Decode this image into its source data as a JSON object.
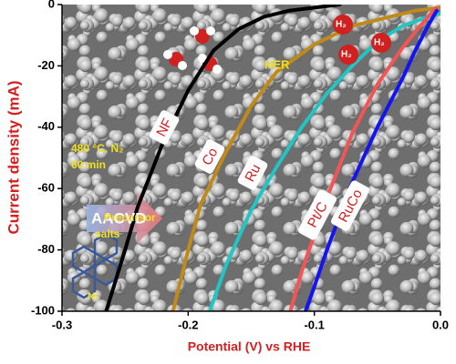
{
  "chart_data": {
    "type": "line",
    "xlabel": "Potential (V) vs RHE",
    "ylabel": "Current density (mA)",
    "xlim": [
      -0.3,
      0
    ],
    "ylim": [
      -100,
      0
    ],
    "xticks": [
      -0.3,
      -0.2,
      -0.1,
      {
        "value": 0,
        "label": "0.0"
      }
    ],
    "yticks": [
      0,
      -20,
      -40,
      -60,
      -80,
      -100
    ],
    "series": [
      {
        "name": "NF",
        "color": "#000000",
        "x": [
          -0.265,
          -0.25,
          -0.24,
          -0.22,
          -0.2,
          -0.18,
          -0.16,
          -0.14,
          -0.12,
          -0.1,
          -0.08
        ],
        "values": [
          -100,
          -80,
          -66,
          -45,
          -28,
          -15,
          -8,
          -4,
          -2,
          -1,
          0
        ]
      },
      {
        "name": "Co",
        "color": "#c08a1a",
        "x": [
          -0.212,
          -0.2,
          -0.19,
          -0.17,
          -0.15,
          -0.13,
          -0.1,
          -0.07,
          -0.04,
          -0.02,
          0
        ],
        "values": [
          -100,
          -80,
          -65,
          -48,
          -33,
          -22,
          -13,
          -7,
          -4,
          -2,
          -1
        ]
      },
      {
        "name": "Ru",
        "color": "#22c4c4",
        "x": [
          -0.183,
          -0.17,
          -0.15,
          -0.13,
          -0.11,
          -0.09,
          -0.07,
          -0.05,
          -0.03,
          -0.01,
          0
        ],
        "values": [
          -100,
          -85,
          -67,
          -53,
          -40,
          -29,
          -20,
          -12,
          -7,
          -4,
          -3
        ]
      },
      {
        "name": "Pt/C",
        "color": "#f25555",
        "x": [
          -0.119,
          -0.11,
          -0.1,
          -0.09,
          -0.07,
          -0.05,
          -0.03,
          -0.02,
          -0.01,
          -0.003
        ],
        "values": [
          -100,
          -87,
          -75,
          -63,
          -42,
          -26,
          -14,
          -9,
          -4,
          -1
        ]
      },
      {
        "name": "RuCo",
        "color": "#1414f0",
        "x": [
          -0.107,
          -0.1,
          -0.09,
          -0.07,
          -0.05,
          -0.03,
          -0.02,
          -0.01,
          -0.003
        ],
        "values": [
          -100,
          -92,
          -80,
          -58,
          -40,
          -24,
          -15,
          -7,
          -2
        ]
      }
    ],
    "annotations": [
      "HER",
      "480 °C, N₂",
      "60 min",
      "AACVD",
      "Precursor",
      "salts",
      "Ni",
      "H₂",
      "H₂",
      "H₂"
    ]
  }
}
